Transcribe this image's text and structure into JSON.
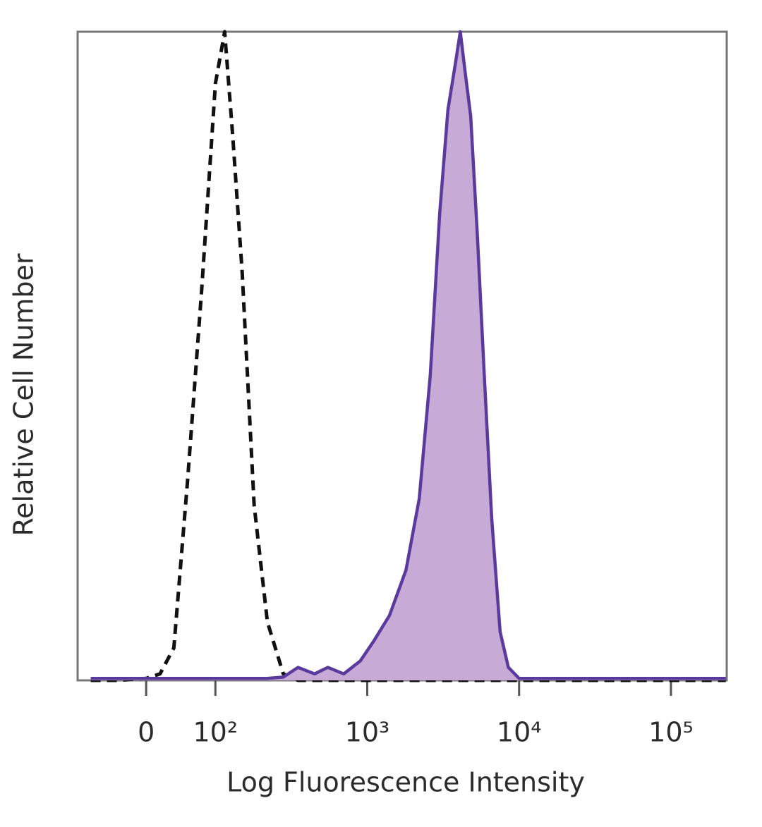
{
  "chart_data": {
    "type": "histogram-overlay",
    "x_label": "Log Fluorescence Intensity",
    "y_label": "Relative Cell Number",
    "xscale": "biexponential",
    "xlim": [
      -99,
      233000
    ],
    "ylim": [
      0,
      100
    ],
    "xticks": [
      0,
      {
        "value": 100,
        "label": "10²"
      },
      {
        "value": 1000,
        "label": "10³"
      },
      {
        "value": 10000,
        "label": "10⁴"
      },
      {
        "value": 100000,
        "label": "10⁵"
      }
    ],
    "x": [
      -80,
      -40,
      0,
      20,
      40,
      60,
      80,
      100,
      115,
      130,
      150,
      180,
      220,
      280,
      350,
      450,
      550,
      700,
      900,
      1100,
      1400,
      1800,
      2200,
      2600,
      3000,
      3400,
      3800,
      4100,
      4400,
      4800,
      5300,
      5900,
      6600,
      7500,
      8500,
      10000,
      20000,
      50000,
      100000,
      230000
    ],
    "series": [
      {
        "color": "#111111",
        "dashed": true,
        "values": [
          0,
          0,
          0.3,
          1,
          5,
          31,
          60,
          92,
          100,
          84,
          63,
          27,
          9,
          1,
          0,
          0,
          0,
          0,
          0,
          0,
          0,
          0,
          0,
          0,
          0,
          0,
          0,
          0,
          0,
          0,
          0,
          0,
          0,
          0,
          0,
          0,
          0,
          0,
          0,
          0
        ]
      },
      {
        "color": "#5a3a9c",
        "fill": "#c7abd6",
        "values": [
          0.3,
          0.3,
          0.3,
          0.3,
          0.3,
          0.3,
          0.3,
          0.3,
          0.3,
          0.3,
          0.3,
          0.3,
          0.3,
          0.5,
          2,
          1,
          2,
          1,
          3,
          6,
          10,
          17,
          28,
          47,
          72,
          88,
          95,
          100,
          94,
          87,
          69,
          47,
          25,
          7.5,
          2,
          0.3,
          0.3,
          0.3,
          0.3,
          0.3
        ]
      }
    ]
  }
}
